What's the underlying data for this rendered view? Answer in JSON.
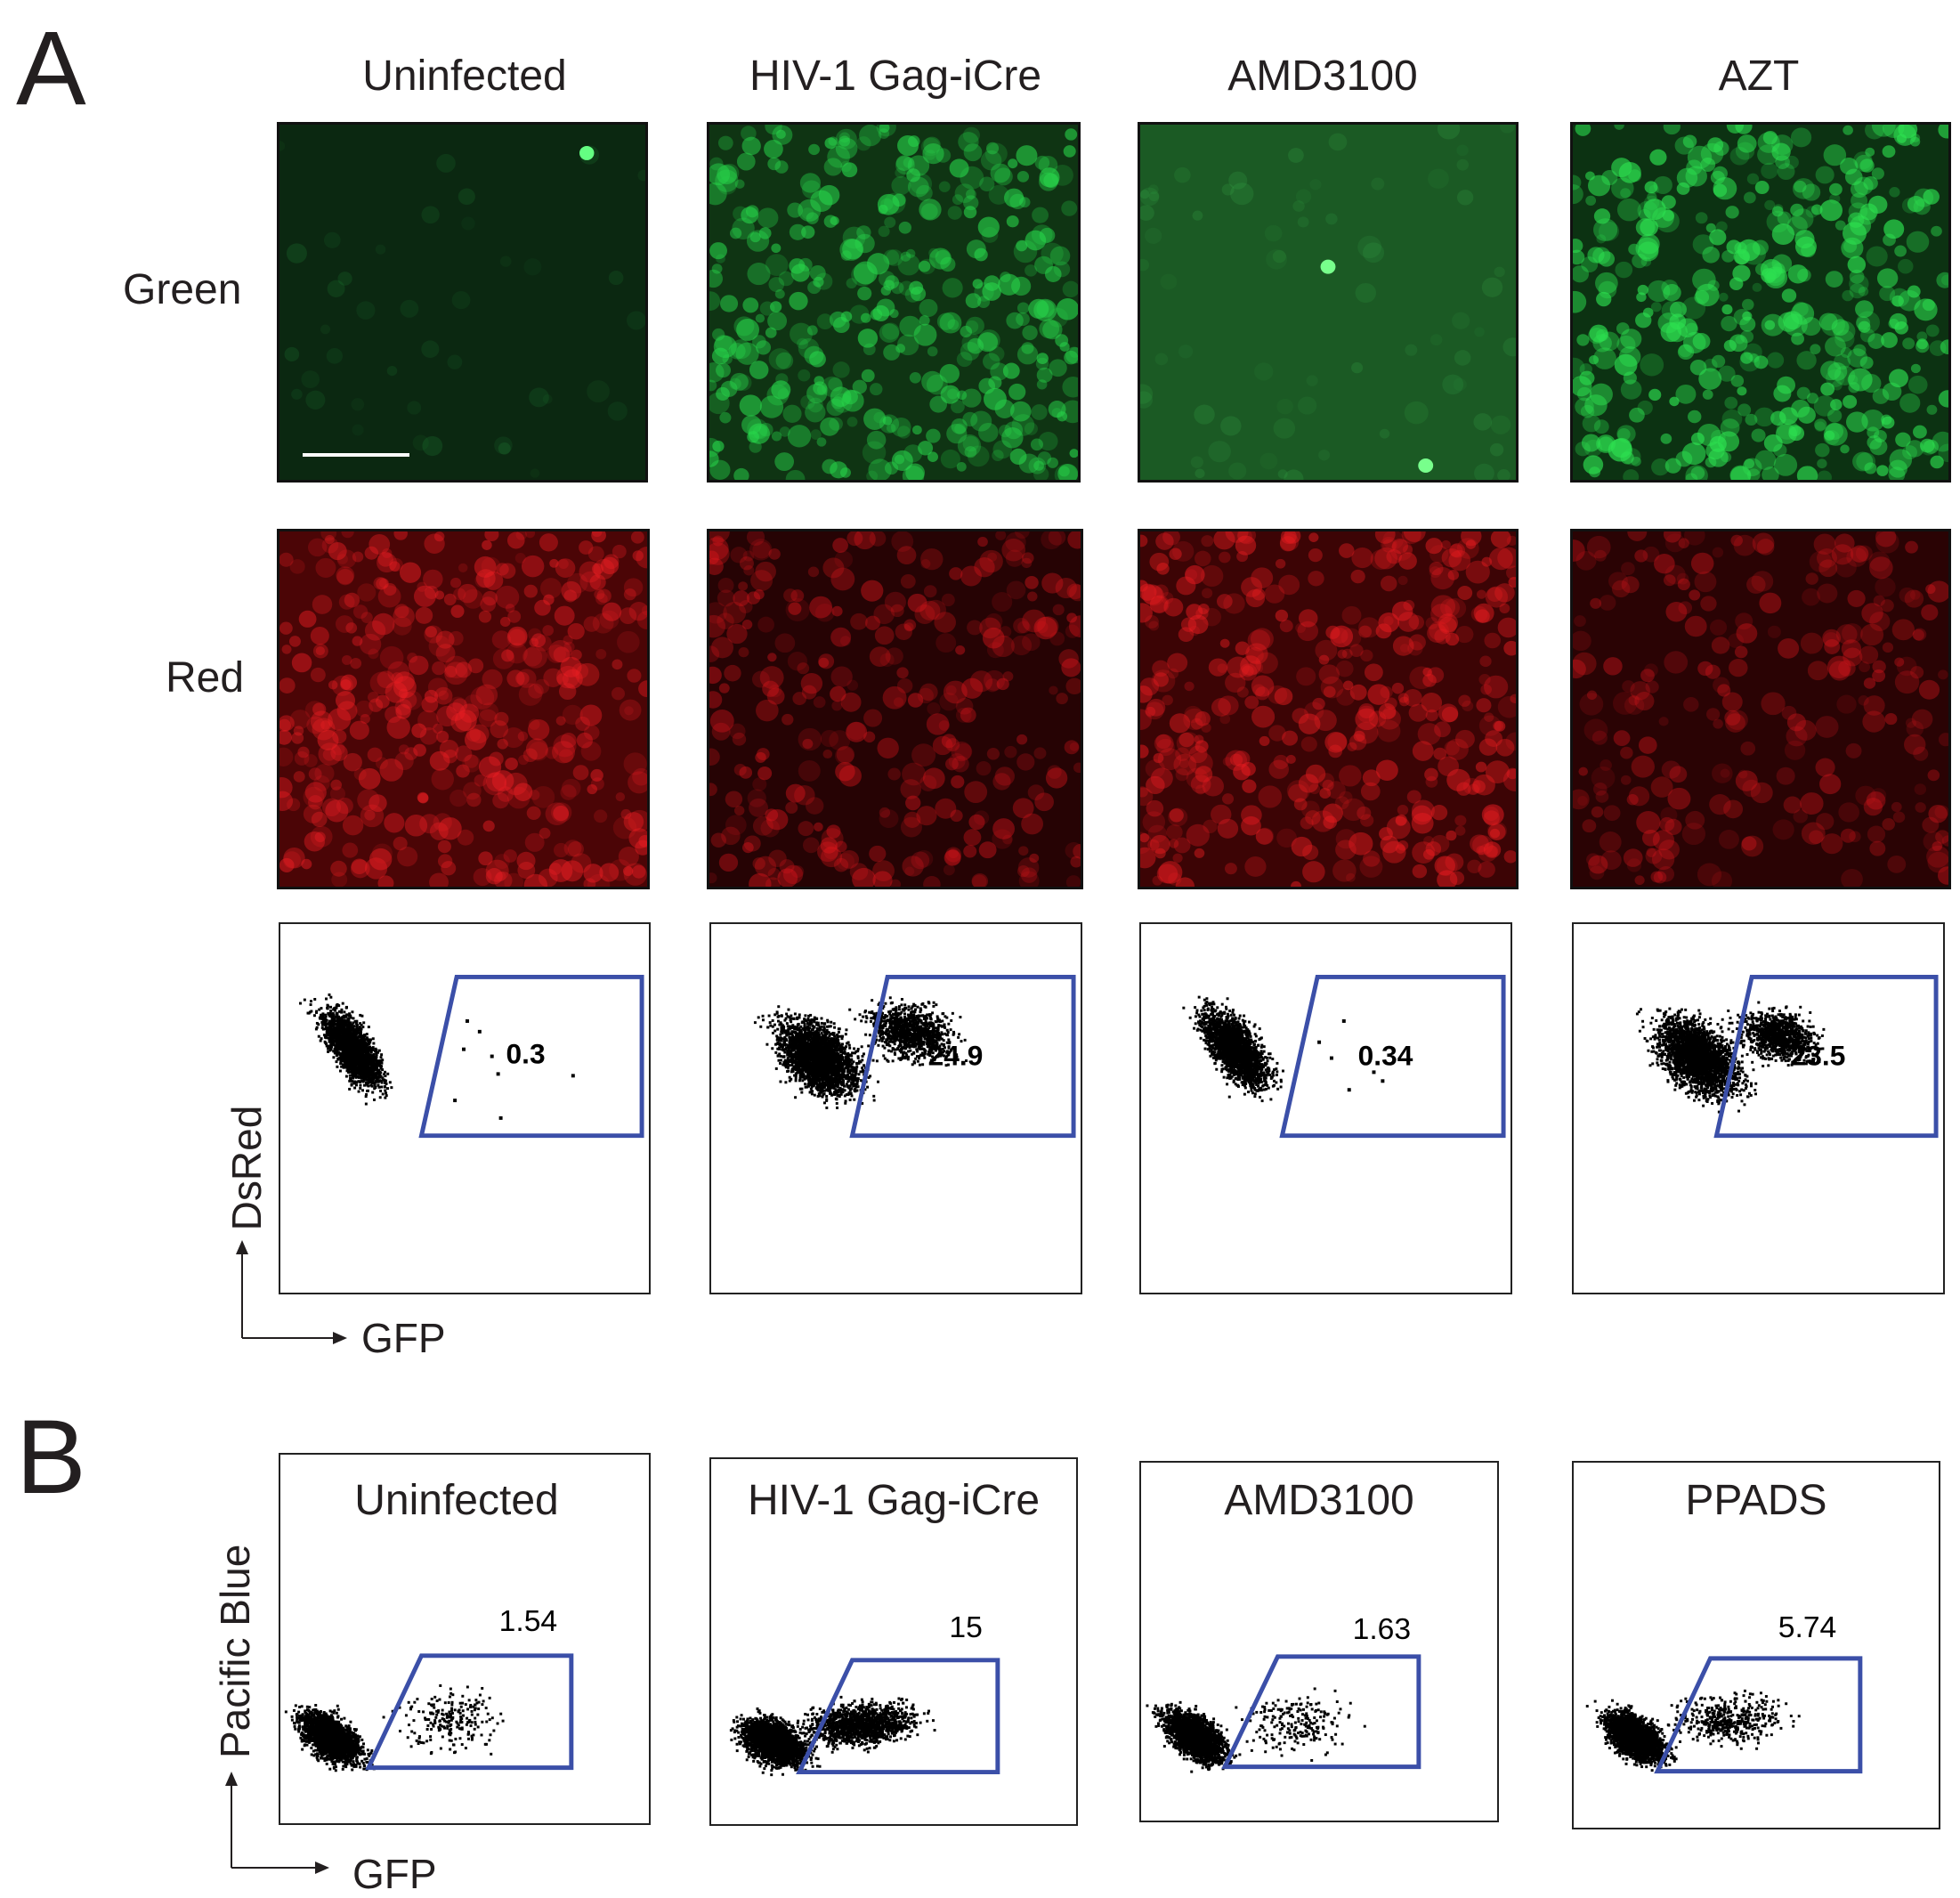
{
  "panel_a": {
    "letter": "A",
    "columns": [
      "Uninfected",
      "HIV-1 Gag-iCre",
      "AMD3100",
      "AZT"
    ],
    "rows": [
      "Green",
      "Red"
    ],
    "gate_values": [
      "0.3",
      "24.9",
      "0.34",
      "23.5"
    ],
    "y_axis": "DsRed",
    "x_axis": "GFP"
  },
  "panel_b": {
    "letter": "B",
    "titles": [
      "Uninfected",
      "HIV-1 Gag-iCre",
      "AMD3100",
      "PPADS"
    ],
    "gate_values": [
      "1.54",
      "15",
      "1.63",
      "5.74"
    ],
    "y_axis": "Pacific Blue",
    "x_axis": "GFP"
  },
  "colors": {
    "gate": "#3b4fa8",
    "green_channel": "#1fd94a",
    "red_channel": "#e8101a",
    "dots": "#000000"
  }
}
